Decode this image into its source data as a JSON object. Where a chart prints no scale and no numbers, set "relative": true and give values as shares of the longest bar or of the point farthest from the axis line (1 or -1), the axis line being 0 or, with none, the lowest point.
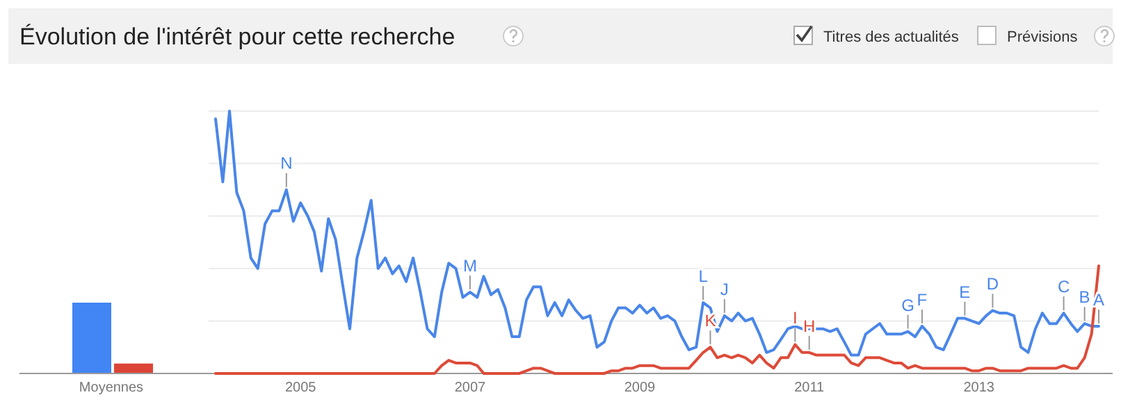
{
  "chart_data": [
    {
      "type": "bar",
      "categories": [
        "Moyennes"
      ],
      "relative": true,
      "series": [
        {
          "color": "#4285f4",
          "values": [
            1
          ]
        },
        {
          "color": "#db4437",
          "values": [
            0.14
          ]
        }
      ]
    },
    {
      "type": "line",
      "title": "Évolution de l'intérêt pour cette recherche",
      "relative": true,
      "grid": true,
      "x": [
        "2004-01",
        "2004-02",
        "2004-03",
        "2004-04",
        "2004-05",
        "2004-06",
        "2004-07",
        "2004-08",
        "2004-09",
        "2004-10",
        "2004-11",
        "2004-12",
        "2005-01",
        "2005-02",
        "2005-03",
        "2005-04",
        "2005-05",
        "2005-06",
        "2005-07",
        "2005-08",
        "2005-09",
        "2005-10",
        "2005-11",
        "2005-12",
        "2006-01",
        "2006-02",
        "2006-03",
        "2006-04",
        "2006-05",
        "2006-06",
        "2006-07",
        "2006-08",
        "2006-09",
        "2006-10",
        "2006-11",
        "2006-12",
        "2007-01",
        "2007-02",
        "2007-03",
        "2007-04",
        "2007-05",
        "2007-06",
        "2007-07",
        "2007-08",
        "2007-09",
        "2007-10",
        "2007-11",
        "2007-12",
        "2008-01",
        "2008-02",
        "2008-03",
        "2008-04",
        "2008-05",
        "2008-06",
        "2008-07",
        "2008-08",
        "2008-09",
        "2008-10",
        "2008-11",
        "2008-12",
        "2009-01",
        "2009-02",
        "2009-03",
        "2009-04",
        "2009-05",
        "2009-06",
        "2009-07",
        "2009-08",
        "2009-09",
        "2009-10",
        "2009-11",
        "2009-12",
        "2010-01",
        "2010-02",
        "2010-03",
        "2010-04",
        "2010-05",
        "2010-06",
        "2010-07",
        "2010-08",
        "2010-09",
        "2010-10",
        "2010-11",
        "2010-12",
        "2011-01",
        "2011-02",
        "2011-03",
        "2011-04",
        "2011-05",
        "2011-06",
        "2011-07",
        "2011-08",
        "2011-09",
        "2011-10",
        "2011-11",
        "2011-12",
        "2012-01",
        "2012-02",
        "2012-03",
        "2012-04",
        "2012-05",
        "2012-06",
        "2012-07",
        "2012-08",
        "2012-09",
        "2012-10",
        "2012-11",
        "2012-12",
        "2013-01",
        "2013-02",
        "2013-03",
        "2013-04",
        "2013-05",
        "2013-06",
        "2013-07",
        "2013-08",
        "2013-09",
        "2013-10",
        "2013-11",
        "2013-12",
        "2014-01",
        "2014-02",
        "2014-03",
        "2014-04",
        "2014-05",
        "2014-06"
      ],
      "xlim": [
        "2004-01",
        "2014-06"
      ],
      "xticks": [
        {
          "value": "2005-01",
          "label": "2005"
        },
        {
          "value": "2007-01",
          "label": "2007"
        },
        {
          "value": "2009-01",
          "label": "2009"
        },
        {
          "value": "2011-01",
          "label": "2011"
        },
        {
          "value": "2013-01",
          "label": "2013"
        }
      ],
      "series": [
        {
          "color": "#4a86e8",
          "values": [
            0.97,
            0.73,
            1.0,
            0.69,
            0.62,
            0.44,
            0.4,
            0.57,
            0.62,
            0.62,
            0.7,
            0.58,
            0.65,
            0.6,
            0.54,
            0.39,
            0.59,
            0.51,
            0.34,
            0.17,
            0.44,
            0.54,
            0.66,
            0.4,
            0.44,
            0.38,
            0.41,
            0.35,
            0.44,
            0.31,
            0.17,
            0.14,
            0.31,
            0.42,
            0.4,
            0.29,
            0.31,
            0.29,
            0.37,
            0.3,
            0.32,
            0.25,
            0.14,
            0.14,
            0.28,
            0.33,
            0.33,
            0.22,
            0.27,
            0.22,
            0.28,
            0.24,
            0.21,
            0.22,
            0.1,
            0.12,
            0.2,
            0.25,
            0.25,
            0.23,
            0.26,
            0.23,
            0.25,
            0.21,
            0.22,
            0.2,
            0.14,
            0.09,
            0.1,
            0.27,
            0.25,
            0.16,
            0.22,
            0.2,
            0.23,
            0.2,
            0.21,
            0.15,
            0.08,
            0.09,
            0.13,
            0.17,
            0.18,
            0.17,
            0.17,
            0.17,
            0.17,
            0.16,
            0.17,
            0.12,
            0.07,
            0.07,
            0.15,
            0.17,
            0.19,
            0.15,
            0.15,
            0.15,
            0.16,
            0.14,
            0.18,
            0.15,
            0.1,
            0.09,
            0.15,
            0.21,
            0.21,
            0.2,
            0.19,
            0.22,
            0.24,
            0.23,
            0.23,
            0.22,
            0.1,
            0.08,
            0.17,
            0.23,
            0.19,
            0.19,
            0.23,
            0.19,
            0.16,
            0.19,
            0.18,
            0.18
          ]
        },
        {
          "color": "#dd4b39",
          "values": [
            0,
            0,
            0,
            0,
            0,
            0,
            0,
            0,
            0,
            0,
            0,
            0,
            0,
            0,
            0,
            0,
            0,
            0,
            0,
            0,
            0,
            0,
            0,
            0,
            0,
            0,
            0,
            0,
            0,
            0,
            0,
            0,
            0.03,
            0.05,
            0.04,
            0.04,
            0.04,
            0.03,
            0,
            0,
            0,
            0,
            0,
            0,
            0.01,
            0.02,
            0.02,
            0.01,
            0,
            0,
            0,
            0,
            0,
            0,
            0,
            0,
            0.01,
            0.01,
            0.02,
            0.02,
            0.03,
            0.03,
            0.03,
            0.02,
            0.02,
            0.02,
            0.02,
            0.02,
            0.05,
            0.08,
            0.1,
            0.06,
            0.07,
            0.06,
            0.07,
            0.06,
            0.04,
            0.07,
            0.04,
            0.02,
            0.06,
            0.06,
            0.11,
            0.08,
            0.08,
            0.07,
            0.07,
            0.07,
            0.07,
            0.07,
            0.04,
            0.03,
            0.06,
            0.06,
            0.06,
            0.05,
            0.04,
            0.04,
            0.02,
            0.03,
            0.02,
            0.02,
            0.02,
            0.02,
            0.02,
            0.02,
            0.02,
            0.01,
            0.01,
            0.02,
            0.02,
            0.01,
            0.01,
            0.01,
            0.01,
            0.02,
            0.02,
            0.02,
            0.02,
            0.02,
            0.03,
            0.02,
            0.02,
            0.06,
            0.15,
            0.41
          ]
        }
      ],
      "annotations": [
        "Titres des actualités",
        "Prévisions",
        {
          "text": "N",
          "x": "2004-11",
          "y": 0.7
        },
        {
          "text": "M",
          "x": "2007-01",
          "y": 0.31
        },
        {
          "text": "L",
          "x": "2009-10",
          "y": 0.27
        },
        {
          "text": "K",
          "x": "2009-11",
          "y": 0.1
        },
        {
          "text": "J",
          "x": "2010-01",
          "y": 0.22
        },
        {
          "text": "I",
          "x": "2010-11",
          "y": 0.11
        },
        {
          "text": "H",
          "x": "2011-01",
          "y": 0.08
        },
        {
          "text": "G",
          "x": "2012-03",
          "y": 0.16
        },
        {
          "text": "F",
          "x": "2012-05",
          "y": 0.18
        },
        {
          "text": "E",
          "x": "2012-11",
          "y": 0.21
        },
        {
          "text": "D",
          "x": "2013-03",
          "y": 0.24
        },
        {
          "text": "C",
          "x": "2014-01",
          "y": 0.23
        },
        {
          "text": "B",
          "x": "2014-04",
          "y": 0.19
        },
        {
          "text": "A",
          "x": "2014-06",
          "y": 0.18
        }
      ]
    }
  ]
}
